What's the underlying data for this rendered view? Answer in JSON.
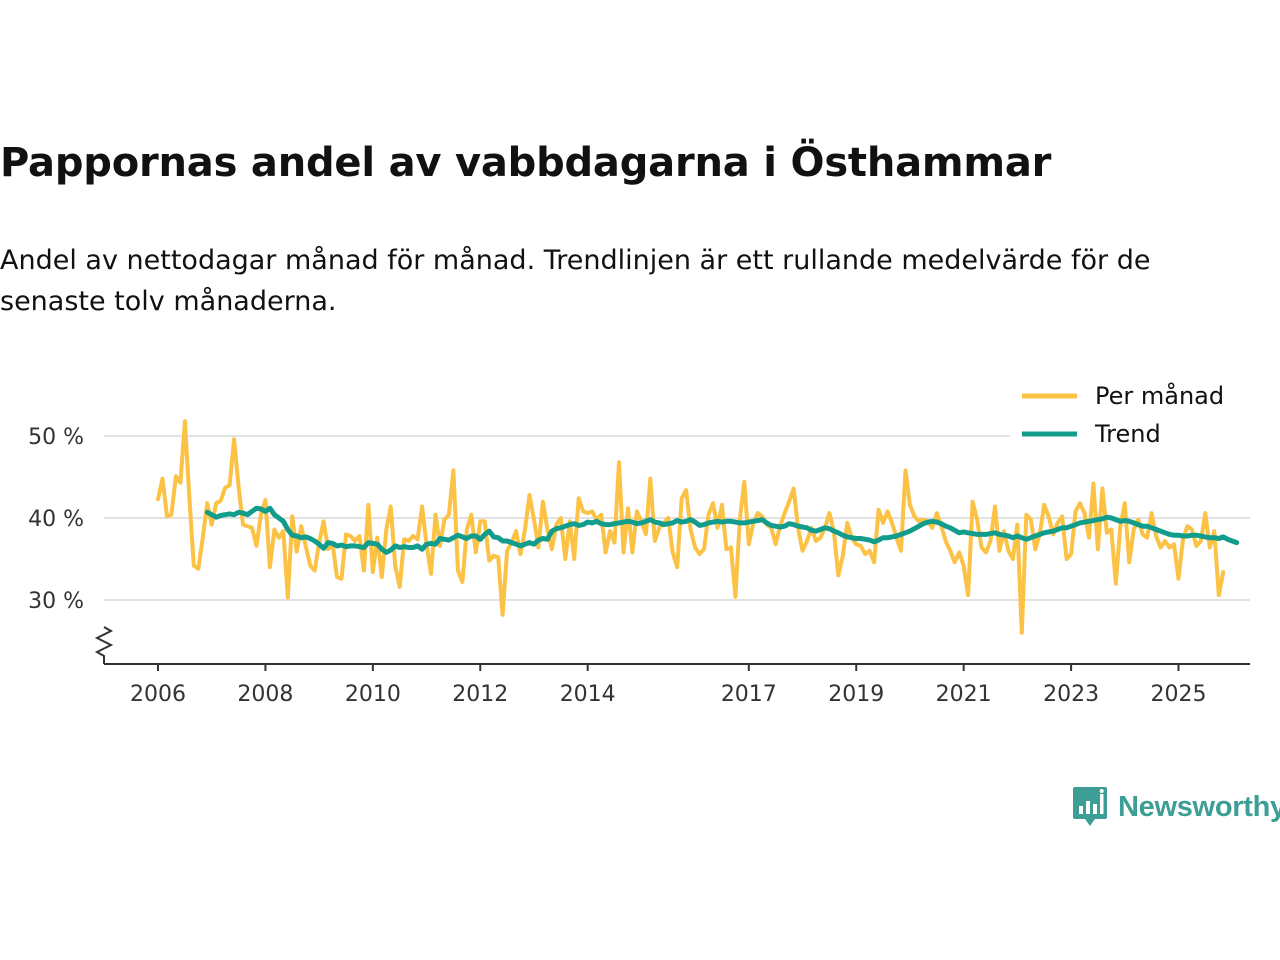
{
  "title": "Pappornas andel av vabbdagarna i Östhammar",
  "subtitle": "Andel av nettodagar månad för månad. Trendlinjen är ett rullande medelvärde för de senaste tolv månaderna.",
  "brand": {
    "name": "Newsworthy",
    "color": "#3d9e96"
  },
  "colors": {
    "monthly": "#fcc245",
    "trend": "#129c8c",
    "grid": "#d9d9d9",
    "axis": "#333333"
  },
  "chart_data": {
    "type": "line",
    "title": "Pappornas andel av vabbdagarna i Östhammar",
    "xlabel": "",
    "ylabel": "",
    "y_unit": "%",
    "xlim": [
      2006,
      2025.4
    ],
    "ylim": [
      22,
      55
    ],
    "y_axis_break": true,
    "yticks": [
      30,
      40,
      50
    ],
    "ytick_labels": [
      "30 %",
      "40 %",
      "50 %"
    ],
    "xticks": [
      2006,
      2008,
      2010,
      2012,
      2014,
      2017,
      2019,
      2021,
      2023,
      2025
    ],
    "xtick_labels": [
      "2006",
      "2008",
      "2010",
      "2012",
      "2014",
      "2017",
      "2019",
      "2021",
      "2023",
      "2025"
    ],
    "legend": {
      "position": "top-right",
      "labels": [
        "Per månad",
        "Trend"
      ]
    },
    "x_start": 2006.0,
    "x_step": 0.08333,
    "series": [
      {
        "name": "Per månad",
        "values": [
          42.3,
          44.8,
          40.2,
          40.4,
          45.1,
          44.3,
          51.8,
          42.6,
          34.2,
          33.8,
          37.6,
          41.8,
          39.2,
          41.8,
          42.1,
          43.7,
          44.0,
          49.6,
          43.8,
          39.2,
          39.0,
          38.8,
          36.6,
          40.4,
          42.2,
          34.0,
          38.6,
          37.6,
          38.4,
          30.3,
          40.2,
          35.9,
          39.0,
          36.6,
          34.2,
          33.6,
          37.0,
          39.6,
          36.2,
          36.8,
          32.8,
          32.6,
          38.0,
          37.8,
          37.2,
          37.8,
          33.6,
          41.6,
          33.4,
          37.6,
          32.8,
          38.6,
          41.4,
          34.2,
          31.6,
          37.4,
          37.2,
          37.8,
          37.4,
          41.4,
          36.8,
          33.2,
          40.4,
          36.6,
          39.8,
          40.4,
          45.8,
          33.6,
          32.2,
          38.6,
          40.4,
          35.8,
          39.6,
          39.6,
          34.8,
          35.4,
          35.2,
          28.2,
          36.0,
          37.0,
          38.4,
          35.6,
          38.6,
          42.8,
          39.8,
          36.4,
          42.0,
          38.6,
          36.2,
          39.2,
          40.0,
          35.0,
          39.6,
          35.0,
          42.4,
          40.8,
          40.6,
          40.8,
          39.8,
          40.4,
          35.8,
          38.4,
          37.0,
          46.8,
          35.8,
          41.2,
          35.8,
          40.8,
          39.6,
          38.0,
          44.8,
          37.2,
          38.8,
          39.4,
          40.0,
          35.8,
          34.0,
          42.4,
          43.4,
          38.6,
          36.4,
          35.6,
          36.2,
          40.4,
          41.8,
          38.8,
          41.6,
          36.2,
          36.4,
          30.4,
          39.8,
          44.4,
          36.8,
          39.4,
          40.6,
          40.2,
          39.2,
          38.8,
          36.8,
          39.0,
          40.6,
          42.0,
          43.6,
          38.8,
          36.0,
          37.2,
          38.8,
          37.2,
          37.6,
          38.8,
          40.6,
          38.4,
          33.0,
          35.4,
          39.4,
          37.6,
          36.8,
          36.6,
          35.6,
          36.0,
          34.6,
          41.0,
          39.4,
          40.8,
          39.4,
          37.6,
          36.0,
          45.8,
          41.6,
          40.2,
          39.6,
          39.8,
          39.6,
          38.8,
          40.6,
          39.0,
          37.2,
          36.0,
          34.6,
          35.8,
          34.2,
          30.6,
          42.0,
          39.8,
          36.4,
          35.8,
          37.2,
          41.4,
          36.0,
          38.4,
          36.0,
          35.0,
          39.2,
          26.0,
          40.4,
          39.8,
          36.2,
          38.0,
          41.6,
          40.2,
          38.0,
          39.4,
          40.2,
          35.0,
          35.6,
          40.8,
          41.8,
          40.6,
          37.6,
          44.2,
          36.2,
          43.6,
          38.2,
          38.6,
          32.0,
          39.0,
          41.8,
          34.6,
          38.6,
          39.8,
          38.0,
          37.6,
          40.6,
          37.8,
          36.4,
          37.2,
          36.4,
          36.8,
          32.6,
          37.4,
          39.0,
          38.6,
          36.6,
          37.2,
          40.6,
          36.4,
          38.4,
          30.6,
          33.4
        ]
      },
      {
        "name": "Trend",
        "x_start": 2006.917,
        "values": [
          40.7,
          40.4,
          40.1,
          40.3,
          40.4,
          40.5,
          40.4,
          40.7,
          40.6,
          40.4,
          40.8,
          41.2,
          41.1,
          40.8,
          41.2,
          40.4,
          40.0,
          39.6,
          38.6,
          37.9,
          37.8,
          37.6,
          37.7,
          37.5,
          37.2,
          36.8,
          36.3,
          37.0,
          36.9,
          36.6,
          36.7,
          36.5,
          36.6,
          36.6,
          36.5,
          36.4,
          37.0,
          36.9,
          36.8,
          36.2,
          35.8,
          36.1,
          36.6,
          36.4,
          36.5,
          36.4,
          36.4,
          36.6,
          36.2,
          36.8,
          36.9,
          36.8,
          37.5,
          37.4,
          37.3,
          37.6,
          37.9,
          37.7,
          37.5,
          37.8,
          37.8,
          37.4,
          38.0,
          38.4,
          37.7,
          37.6,
          37.2,
          37.2,
          37.0,
          36.8,
          36.6,
          36.8,
          37.0,
          36.8,
          37.3,
          37.5,
          37.4,
          38.4,
          38.7,
          38.8,
          39.0,
          39.2,
          39.3,
          39.1,
          39.2,
          39.5,
          39.4,
          39.6,
          39.3,
          39.2,
          39.2,
          39.3,
          39.4,
          39.5,
          39.6,
          39.5,
          39.3,
          39.4,
          39.6,
          39.8,
          39.5,
          39.4,
          39.2,
          39.3,
          39.4,
          39.7,
          39.5,
          39.6,
          39.8,
          39.5,
          39.1,
          39.2,
          39.4,
          39.5,
          39.6,
          39.5,
          39.6,
          39.6,
          39.5,
          39.4,
          39.4,
          39.5,
          39.6,
          39.7,
          39.8,
          39.4,
          39.1,
          39.0,
          38.9,
          39.0,
          39.3,
          39.2,
          39.0,
          38.9,
          38.8,
          38.5,
          38.4,
          38.6,
          38.8,
          38.7,
          38.4,
          38.2,
          37.9,
          37.7,
          37.6,
          37.5,
          37.5,
          37.4,
          37.3,
          37.1,
          37.3,
          37.6,
          37.6,
          37.7,
          37.8,
          38.0,
          38.2,
          38.4,
          38.7,
          39.0,
          39.3,
          39.5,
          39.6,
          39.5,
          39.3,
          39.0,
          38.8,
          38.5,
          38.2,
          38.3,
          38.2,
          38.1,
          38.0,
          38.0,
          38.0,
          38.1,
          38.2,
          38.0,
          37.9,
          37.8,
          37.6,
          37.8,
          37.6,
          37.4,
          37.6,
          37.8,
          38.0,
          38.2,
          38.3,
          38.4,
          38.6,
          38.8,
          38.8,
          39.0,
          39.2,
          39.4,
          39.5,
          39.6,
          39.7,
          39.8,
          39.9,
          40.1,
          40.0,
          39.8,
          39.6,
          39.7,
          39.6,
          39.4,
          39.2,
          39.0,
          39.0,
          38.8,
          38.6,
          38.4,
          38.2,
          38.0,
          37.9,
          37.9,
          37.8,
          37.8,
          37.9,
          37.9,
          37.8,
          37.7,
          37.6,
          37.6,
          37.5,
          37.7,
          37.4,
          37.2,
          37.0
        ]
      }
    ]
  }
}
